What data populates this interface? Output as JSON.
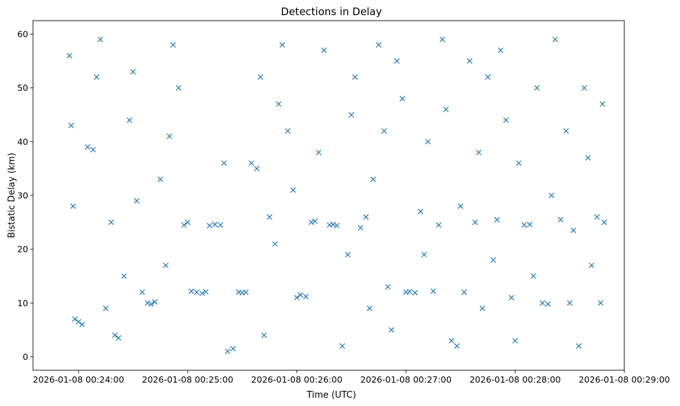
{
  "chart_data": {
    "type": "scatter",
    "title": "Detections in Delay",
    "xlabel": "Time (UTC)",
    "ylabel": "Bistatic Delay (km)",
    "xlim": [
      "2026-01-08 00:23:35",
      "2026-01-08 00:29:00"
    ],
    "ylim": [
      -2.5,
      62.5
    ],
    "xticks": [
      "2026-01-08 00:24:00",
      "2026-01-08 00:25:00",
      "2026-01-08 00:26:00",
      "2026-01-08 00:27:00",
      "2026-01-08 00:28:00",
      "2026-01-08 00:29:00"
    ],
    "yticks": [
      0,
      10,
      20,
      30,
      40,
      50,
      60
    ],
    "marker": "x",
    "marker_color": "#1f77b4",
    "grid": false,
    "series": [
      {
        "points": [
          [
            "2026-01-08 00:23:55",
            56
          ],
          [
            "2026-01-08 00:23:56",
            43
          ],
          [
            "2026-01-08 00:23:57",
            28
          ],
          [
            "2026-01-08 00:23:58",
            7
          ],
          [
            "2026-01-08 00:24:00",
            6.5
          ],
          [
            "2026-01-08 00:24:02",
            6
          ],
          [
            "2026-01-08 00:24:05",
            39
          ],
          [
            "2026-01-08 00:24:08",
            38.5
          ],
          [
            "2026-01-08 00:24:10",
            52
          ],
          [
            "2026-01-08 00:24:12",
            59
          ],
          [
            "2026-01-08 00:24:15",
            9
          ],
          [
            "2026-01-08 00:24:18",
            25
          ],
          [
            "2026-01-08 00:24:20",
            4
          ],
          [
            "2026-01-08 00:24:22",
            3.5
          ],
          [
            "2026-01-08 00:24:25",
            15
          ],
          [
            "2026-01-08 00:24:28",
            44
          ],
          [
            "2026-01-08 00:24:30",
            53
          ],
          [
            "2026-01-08 00:24:32",
            29
          ],
          [
            "2026-01-08 00:24:35",
            12
          ],
          [
            "2026-01-08 00:24:38",
            10
          ],
          [
            "2026-01-08 00:24:40",
            9.8
          ],
          [
            "2026-01-08 00:24:42",
            10.2
          ],
          [
            "2026-01-08 00:24:45",
            33
          ],
          [
            "2026-01-08 00:24:48",
            17
          ],
          [
            "2026-01-08 00:24:50",
            41
          ],
          [
            "2026-01-08 00:24:52",
            58
          ],
          [
            "2026-01-08 00:24:55",
            50
          ],
          [
            "2026-01-08 00:24:58",
            24.5
          ],
          [
            "2026-01-08 00:25:00",
            25
          ],
          [
            "2026-01-08 00:25:02",
            12.2
          ],
          [
            "2026-01-08 00:25:05",
            12
          ],
          [
            "2026-01-08 00:25:08",
            11.8
          ],
          [
            "2026-01-08 00:25:10",
            12.1
          ],
          [
            "2026-01-08 00:25:12",
            24.4
          ],
          [
            "2026-01-08 00:25:15",
            24.6
          ],
          [
            "2026-01-08 00:25:18",
            24.5
          ],
          [
            "2026-01-08 00:25:20",
            36
          ],
          [
            "2026-01-08 00:25:22",
            1
          ],
          [
            "2026-01-08 00:25:25",
            1.5
          ],
          [
            "2026-01-08 00:25:28",
            12
          ],
          [
            "2026-01-08 00:25:30",
            11.9
          ],
          [
            "2026-01-08 00:25:32",
            12
          ],
          [
            "2026-01-08 00:25:35",
            36
          ],
          [
            "2026-01-08 00:25:38",
            35
          ],
          [
            "2026-01-08 00:25:40",
            52
          ],
          [
            "2026-01-08 00:25:42",
            4
          ],
          [
            "2026-01-08 00:25:45",
            26
          ],
          [
            "2026-01-08 00:25:48",
            21
          ],
          [
            "2026-01-08 00:25:50",
            47
          ],
          [
            "2026-01-08 00:25:52",
            58
          ],
          [
            "2026-01-08 00:25:55",
            42
          ],
          [
            "2026-01-08 00:25:58",
            31
          ],
          [
            "2026-01-08 00:26:00",
            11
          ],
          [
            "2026-01-08 00:26:02",
            11.5
          ],
          [
            "2026-01-08 00:26:05",
            11.2
          ],
          [
            "2026-01-08 00:26:08",
            25
          ],
          [
            "2026-01-08 00:26:10",
            25.2
          ],
          [
            "2026-01-08 00:26:12",
            38
          ],
          [
            "2026-01-08 00:26:15",
            57
          ],
          [
            "2026-01-08 00:26:18",
            24.5
          ],
          [
            "2026-01-08 00:26:20",
            24.6
          ],
          [
            "2026-01-08 00:26:22",
            24.4
          ],
          [
            "2026-01-08 00:26:25",
            2
          ],
          [
            "2026-01-08 00:26:28",
            19
          ],
          [
            "2026-01-08 00:26:30",
            45
          ],
          [
            "2026-01-08 00:26:32",
            52
          ],
          [
            "2026-01-08 00:26:35",
            24
          ],
          [
            "2026-01-08 00:26:38",
            26
          ],
          [
            "2026-01-08 00:26:40",
            9
          ],
          [
            "2026-01-08 00:26:42",
            33
          ],
          [
            "2026-01-08 00:26:45",
            58
          ],
          [
            "2026-01-08 00:26:48",
            42
          ],
          [
            "2026-01-08 00:26:50",
            13
          ],
          [
            "2026-01-08 00:26:52",
            5
          ],
          [
            "2026-01-08 00:26:55",
            55
          ],
          [
            "2026-01-08 00:26:58",
            48
          ],
          [
            "2026-01-08 00:27:00",
            12
          ],
          [
            "2026-01-08 00:27:02",
            12.1
          ],
          [
            "2026-01-08 00:27:05",
            11.9
          ],
          [
            "2026-01-08 00:27:08",
            27
          ],
          [
            "2026-01-08 00:27:10",
            19
          ],
          [
            "2026-01-08 00:27:12",
            40
          ],
          [
            "2026-01-08 00:27:15",
            12.2
          ],
          [
            "2026-01-08 00:27:18",
            24.5
          ],
          [
            "2026-01-08 00:27:20",
            59
          ],
          [
            "2026-01-08 00:27:22",
            46
          ],
          [
            "2026-01-08 00:27:25",
            3
          ],
          [
            "2026-01-08 00:27:28",
            2
          ],
          [
            "2026-01-08 00:27:30",
            28
          ],
          [
            "2026-01-08 00:27:32",
            12
          ],
          [
            "2026-01-08 00:27:35",
            55
          ],
          [
            "2026-01-08 00:27:38",
            25
          ],
          [
            "2026-01-08 00:27:40",
            38
          ],
          [
            "2026-01-08 00:27:42",
            9
          ],
          [
            "2026-01-08 00:27:45",
            52
          ],
          [
            "2026-01-08 00:27:48",
            18
          ],
          [
            "2026-01-08 00:27:50",
            25.5
          ],
          [
            "2026-01-08 00:27:52",
            57
          ],
          [
            "2026-01-08 00:27:55",
            44
          ],
          [
            "2026-01-08 00:27:58",
            11
          ],
          [
            "2026-01-08 00:28:00",
            3
          ],
          [
            "2026-01-08 00:28:02",
            36
          ],
          [
            "2026-01-08 00:28:05",
            24.5
          ],
          [
            "2026-01-08 00:28:08",
            24.6
          ],
          [
            "2026-01-08 00:28:10",
            15
          ],
          [
            "2026-01-08 00:28:12",
            50
          ],
          [
            "2026-01-08 00:28:15",
            10
          ],
          [
            "2026-01-08 00:28:18",
            9.8
          ],
          [
            "2026-01-08 00:28:20",
            30
          ],
          [
            "2026-01-08 00:28:22",
            59
          ],
          [
            "2026-01-08 00:28:25",
            25.5
          ],
          [
            "2026-01-08 00:28:28",
            42
          ],
          [
            "2026-01-08 00:28:30",
            10
          ],
          [
            "2026-01-08 00:28:32",
            23.5
          ],
          [
            "2026-01-08 00:28:35",
            2
          ],
          [
            "2026-01-08 00:28:38",
            50
          ],
          [
            "2026-01-08 00:28:40",
            37
          ],
          [
            "2026-01-08 00:28:42",
            17
          ],
          [
            "2026-01-08 00:28:45",
            26
          ],
          [
            "2026-01-08 00:28:47",
            10
          ],
          [
            "2026-01-08 00:28:48",
            47
          ],
          [
            "2026-01-08 00:28:49",
            25
          ]
        ]
      }
    ]
  }
}
